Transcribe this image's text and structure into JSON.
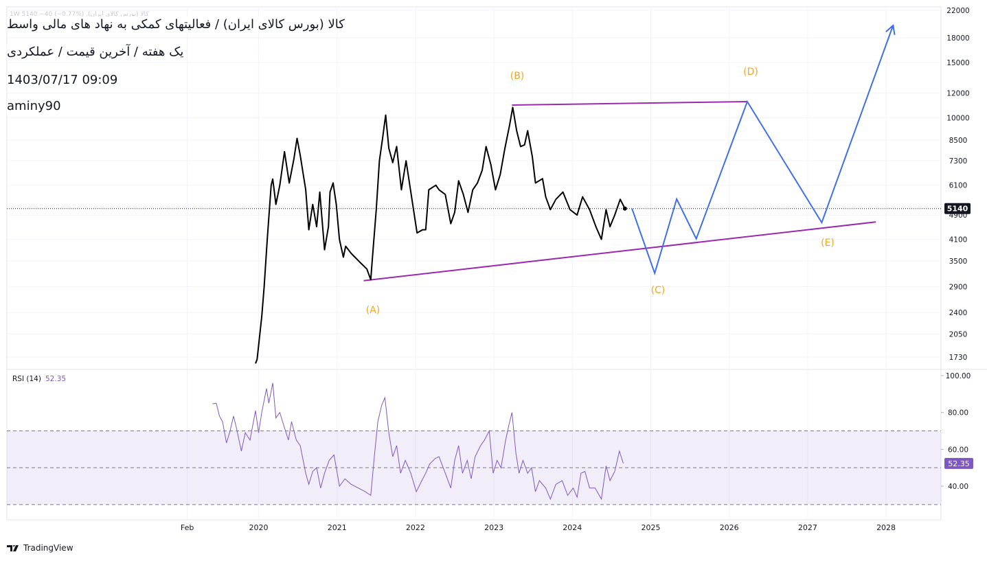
{
  "chart_data": [
    {
      "type": "line",
      "log_scale": true,
      "grid": true,
      "symbol_legend": "کالا (بورس کالای ایران), 1W  5140  −40 (−0.77%)",
      "title": "کالا (بورس کالای ایران) / فعالیتهای کمکی به نهاد های مالی واسط",
      "subtitle": "یک هفته / آخرین قیمت / عملکردی",
      "date": "1403/07/17 09:09",
      "author": "aminy90",
      "xlim": [
        2016.79,
        2028.7
      ],
      "ylim": [
        1580,
        22560
      ],
      "yticks": [
        22000,
        18000,
        15000,
        12000,
        10000,
        8500,
        7300,
        6100,
        4900,
        4100,
        3500,
        2900,
        2400,
        2050,
        1730
      ],
      "last_price": 5140,
      "x": [
        2019.96,
        2019.98,
        2020.04,
        2020.07,
        2020.11,
        2020.16,
        2020.18,
        2020.22,
        2020.27,
        2020.33,
        2020.39,
        2020.45,
        2020.49,
        2020.53,
        2020.6,
        2020.64,
        2020.69,
        2020.74,
        2020.78,
        2020.84,
        2020.89,
        2020.91,
        2020.95,
        2020.99,
        2021.03,
        2021.08,
        2021.11,
        2021.18,
        2021.3,
        2021.38,
        2021.43,
        2021.45,
        2021.5,
        2021.54,
        2021.58,
        2021.62,
        2021.66,
        2021.71,
        2021.76,
        2021.82,
        2021.88,
        2021.95,
        2022.02,
        2022.09,
        2022.13,
        2022.17,
        2022.26,
        2022.3,
        2022.38,
        2022.45,
        2022.5,
        2022.55,
        2022.61,
        2022.67,
        2022.73,
        2022.79,
        2022.85,
        2022.9,
        2022.96,
        2023.02,
        2023.08,
        2023.14,
        2023.2,
        2023.24,
        2023.29,
        2023.34,
        2023.39,
        2023.43,
        2023.49,
        2023.53,
        2023.62,
        2023.66,
        2023.72,
        2023.79,
        2023.88,
        2023.97,
        2024.06,
        2024.13,
        2024.22,
        2024.3,
        2024.37,
        2024.43,
        2024.48,
        2024.54,
        2024.61,
        2024.67
      ],
      "series": [
        {
          "color": "#000000",
          "values": [
            1650,
            1700,
            2330,
            2880,
            4100,
            6100,
            6380,
            5300,
            6100,
            7800,
            6200,
            7400,
            8600,
            7600,
            5900,
            4400,
            5300,
            4500,
            5800,
            3800,
            4500,
            5800,
            6200,
            5300,
            4100,
            3600,
            3900,
            3700,
            3450,
            3300,
            3050,
            3550,
            5100,
            7300,
            8600,
            10200,
            8000,
            7200,
            8100,
            5900,
            7300,
            5600,
            4300,
            4400,
            4400,
            5900,
            6100,
            5900,
            5700,
            4600,
            5000,
            6300,
            5700,
            5000,
            5900,
            6200,
            6800,
            8100,
            7100,
            5900,
            6600,
            8000,
            9500,
            10800,
            9100,
            8100,
            8200,
            9100,
            7500,
            6200,
            6400,
            5600,
            5100,
            5500,
            5800,
            5100,
            4900,
            5600,
            5100,
            4500,
            4100,
            5100,
            4500,
            4900,
            5500,
            5140
          ]
        }
      ],
      "drawings": [
        {
          "color": "#9c27b0",
          "x": [
            2023.23,
            2026.23
          ],
          "values": [
            10980,
            11260
          ]
        },
        {
          "color": "#9c27b0",
          "x": [
            2021.34,
            2027.87
          ],
          "values": [
            3030,
            4660
          ]
        },
        {
          "color": "#3d6ef0",
          "arrow": true,
          "x": [
            2024.76,
            2025.05,
            2025.33,
            2025.58,
            2026.23,
            2027.18,
            2028.09
          ],
          "values": [
            5140,
            3200,
            5510,
            4120,
            11260,
            4640,
            19700
          ]
        }
      ],
      "annotations": [
        "(A)",
        "(B)",
        "(C)",
        "(D)",
        "(E)"
      ],
      "annotation_color": "#f7a51c"
    },
    {
      "type": "line",
      "title": "RSI (14)",
      "last_value": 52.35,
      "color": "#7e57c2",
      "band_color": "#7e57c2",
      "xlim": [
        2016.79,
        2028.7
      ],
      "ylim": [
        21.75,
        103.35
      ],
      "yticks": [
        {
          "value": 100,
          "label": "100.00"
        },
        {
          "value": 80,
          "label": "80.00"
        },
        {
          "value": 60,
          "label": "60.00"
        },
        {
          "value": 40,
          "label": "40.00"
        }
      ],
      "bands": [
        70,
        50,
        30
      ],
      "xticks": [
        {
          "value": 2019.09,
          "label": "Feb"
        },
        {
          "value": 2020,
          "label": "2020"
        },
        {
          "value": 2021,
          "label": "2021"
        },
        {
          "value": 2022,
          "label": "2022"
        },
        {
          "value": 2023,
          "label": "2023"
        },
        {
          "value": 2024,
          "label": "2024"
        },
        {
          "value": 2025,
          "label": "2025"
        },
        {
          "value": 2026,
          "label": "2026"
        },
        {
          "value": 2027,
          "label": "2027"
        },
        {
          "value": 2028,
          "label": "2028"
        }
      ],
      "x": [
        2019.41,
        2019.46,
        2019.5,
        2019.54,
        2019.59,
        2019.63,
        2019.68,
        2019.72,
        2019.78,
        2019.83,
        2019.89,
        2019.96,
        2020.0,
        2020.04,
        2020.1,
        2020.13,
        2020.18,
        2020.22,
        2020.27,
        2020.32,
        2020.38,
        2020.42,
        2020.48,
        2020.53,
        2020.6,
        2020.64,
        2020.69,
        2020.74,
        2020.79,
        2020.84,
        2020.9,
        2020.96,
        2020.99,
        2021.03,
        2021.1,
        2021.18,
        2021.27,
        2021.36,
        2021.43,
        2021.48,
        2021.52,
        2021.57,
        2021.61,
        2021.66,
        2021.71,
        2021.76,
        2021.81,
        2021.87,
        2021.94,
        2022.01,
        2022.08,
        2022.13,
        2022.18,
        2022.25,
        2022.3,
        2022.38,
        2022.45,
        2022.5,
        2022.55,
        2022.6,
        2022.66,
        2022.71,
        2022.76,
        2022.83,
        2022.88,
        2022.94,
        2022.99,
        2023.04,
        2023.09,
        2023.15,
        2023.19,
        2023.23,
        2023.28,
        2023.32,
        2023.37,
        2023.43,
        2023.48,
        2023.53,
        2023.58,
        2023.66,
        2023.72,
        2023.79,
        2023.87,
        2023.94,
        2024.01,
        2024.06,
        2024.11,
        2024.16,
        2024.22,
        2024.29,
        2024.37,
        2024.43,
        2024.48,
        2024.54,
        2024.6,
        2024.65
      ],
      "values": [
        84.7,
        85,
        78,
        75,
        63.5,
        69,
        78,
        71,
        59,
        69,
        65,
        81,
        69,
        80,
        93,
        85,
        96,
        77,
        80,
        73,
        65,
        75,
        65,
        62,
        47,
        41,
        48,
        50,
        39,
        47,
        54,
        57,
        50,
        40,
        44,
        41,
        39,
        37,
        35,
        58,
        75,
        84,
        88,
        69,
        56,
        62,
        47,
        54,
        47,
        37,
        43,
        47,
        52,
        55,
        56,
        47,
        39,
        54,
        62,
        47,
        54,
        44,
        56,
        62,
        65,
        70,
        47,
        54,
        50,
        65,
        73,
        80,
        58,
        47,
        54,
        47,
        50,
        37,
        43,
        39,
        33,
        41,
        43,
        35,
        39,
        34,
        47,
        48,
        39,
        39,
        33,
        51,
        43,
        48,
        59,
        52.35
      ]
    }
  ],
  "footer": "TradingView"
}
